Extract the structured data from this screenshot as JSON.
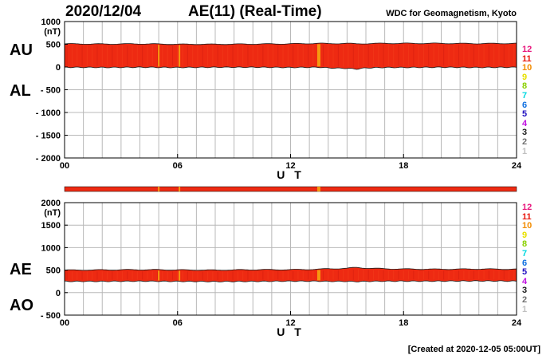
{
  "header": {
    "date": "2020/12/04",
    "title": "AE(11) (Real-Time)",
    "organization": "WDC for Geomagnetism, Kyoto"
  },
  "footer": {
    "created": "[Created at 2020-12-05 05:00UT]"
  },
  "legend": {
    "items": [
      {
        "label": "12",
        "color": "#e8177d"
      },
      {
        "label": "11",
        "color": "#e8180e"
      },
      {
        "label": "10",
        "color": "#f28c00"
      },
      {
        "label": "9",
        "color": "#e8e000"
      },
      {
        "label": "8",
        "color": "#8ad000"
      },
      {
        "label": "7",
        "color": "#00d8e0"
      },
      {
        "label": "6",
        "color": "#1070e0"
      },
      {
        "label": "5",
        "color": "#2010c0"
      },
      {
        "label": "4",
        "color": "#c010e0"
      },
      {
        "label": "3",
        "color": "#202020"
      },
      {
        "label": "2",
        "color": "#707070"
      },
      {
        "label": "1",
        "color": "#c0c0c0"
      }
    ]
  },
  "chart_data": [
    {
      "type": "area",
      "panel": "AU/AL",
      "series_labels": [
        "AU",
        "AL"
      ],
      "ylabel_unit": "(nT)",
      "ylim": [
        -2000,
        1000
      ],
      "yticks": [
        "1000",
        "500",
        "0",
        "- 500",
        "- 1000",
        "- 1500",
        "- 2000"
      ],
      "xlim": [
        0,
        24
      ],
      "xticks": [
        "00",
        "06",
        "12",
        "18",
        "24"
      ],
      "xlabel": "U T",
      "grid": true,
      "x": [
        0,
        2,
        4,
        6,
        8,
        10,
        12,
        13.5,
        14,
        15,
        15.5,
        16,
        17,
        18,
        20,
        22,
        24
      ],
      "upper_values": [
        510,
        505,
        510,
        500,
        500,
        505,
        510,
        520,
        515,
        520,
        510,
        515,
        520,
        520,
        520,
        515,
        520
      ],
      "lower_values": [
        -5,
        -10,
        -5,
        -10,
        -5,
        -5,
        -10,
        -5,
        -20,
        -30,
        -45,
        -20,
        -10,
        -10,
        -5,
        -10,
        -5
      ],
      "highlights": [
        5.0,
        6.1,
        13.5
      ]
    },
    {
      "type": "area",
      "panel": "AE/AO",
      "series_labels": [
        "AE",
        "AO"
      ],
      "ylabel_unit": "(nT)",
      "ylim": [
        -500,
        2000
      ],
      "yticks": [
        "2000",
        "1500",
        "1000",
        "500",
        "0",
        "- 500"
      ],
      "xlim": [
        0,
        24
      ],
      "xticks": [
        "00",
        "06",
        "12",
        "18",
        "24"
      ],
      "xlabel": "U T",
      "grid": true,
      "x": [
        0,
        2,
        4,
        6,
        8,
        10,
        12,
        13.5,
        14,
        15,
        15.5,
        16,
        17,
        18,
        20,
        22,
        24
      ],
      "upper_values": [
        500,
        505,
        510,
        505,
        500,
        510,
        510,
        520,
        530,
        540,
        560,
        545,
        530,
        525,
        520,
        525,
        520
      ],
      "lower_values": [
        250,
        250,
        255,
        250,
        245,
        250,
        255,
        255,
        250,
        250,
        245,
        250,
        255,
        255,
        255,
        260,
        255
      ],
      "highlights": [
        5.0,
        6.1,
        13.5
      ]
    }
  ]
}
